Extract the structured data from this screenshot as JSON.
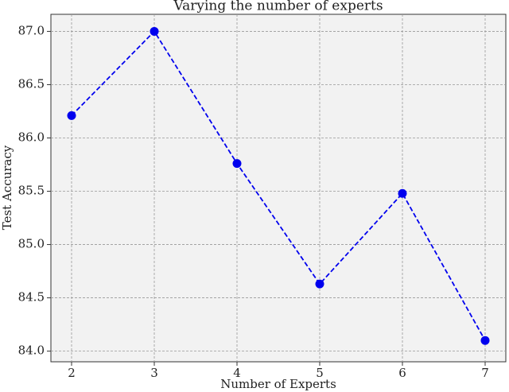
{
  "chart_data": {
    "type": "line",
    "title": "Varying the number of experts",
    "x_label": "Number of Experts",
    "y_label": "Test Accuracy",
    "x": [
      2,
      3,
      4,
      5,
      6,
      7
    ],
    "values": [
      86.21,
      87.0,
      85.76,
      84.63,
      85.48,
      84.1
    ],
    "color": "#0000ee",
    "line_style": "dashed",
    "marker": "circle",
    "xlim": [
      1.75,
      7.25
    ],
    "xticks": [
      2,
      3,
      4,
      5,
      6,
      7
    ],
    "ylim": [
      83.9,
      87.16
    ],
    "yticks": [
      {
        "value": 84.0,
        "label": "84.0"
      },
      {
        "value": 84.5,
        "label": "84.5"
      },
      {
        "value": 85.0,
        "label": "85.0"
      },
      {
        "value": 85.5,
        "label": "85.5"
      },
      {
        "value": 86.0,
        "label": "86.0"
      },
      {
        "value": 86.5,
        "label": "86.5"
      },
      {
        "value": 87.0,
        "label": "87.0"
      }
    ],
    "grid": true
  }
}
